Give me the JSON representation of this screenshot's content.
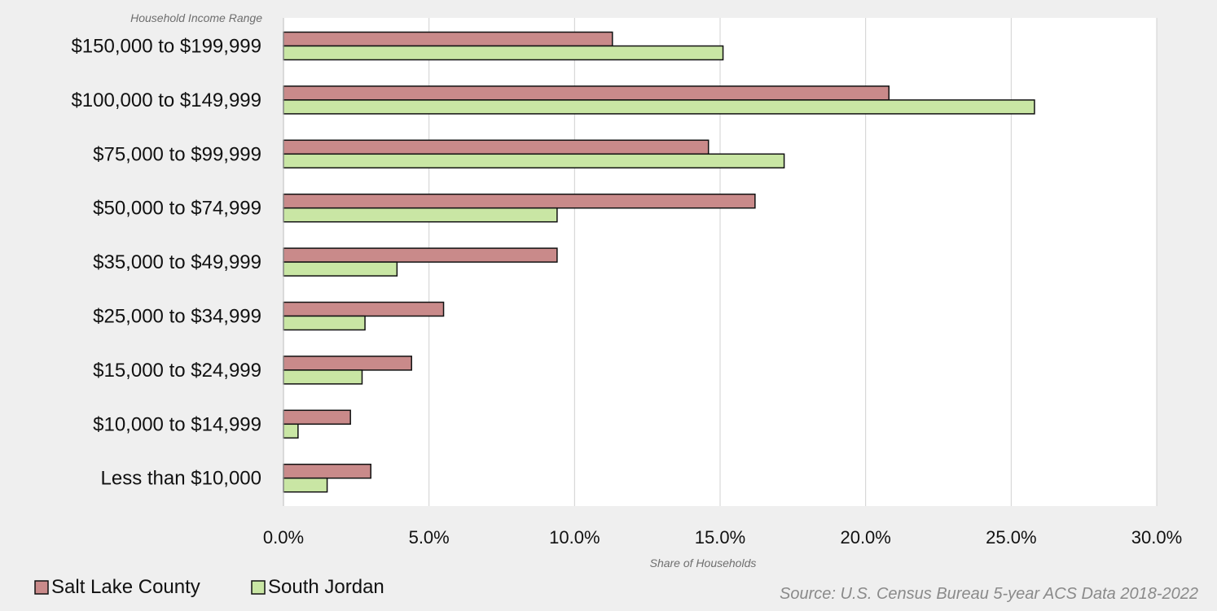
{
  "chart_data": {
    "type": "bar",
    "orientation": "horizontal",
    "categories": [
      "$150,000 to $199,999",
      "$100,000 to $149,999",
      "$75,000 to $99,999",
      "$50,000 to $74,999",
      "$35,000 to $49,999",
      "$25,000 to $34,999",
      "$15,000 to $24,999",
      "$10,000 to $14,999",
      "Less than $10,000"
    ],
    "series": [
      {
        "name": "Salt Lake County",
        "color": "#c98a8a",
        "values": [
          11.3,
          20.8,
          14.6,
          16.2,
          9.4,
          5.5,
          4.4,
          2.3,
          3.0
        ]
      },
      {
        "name": "South Jordan",
        "color": "#c9e6a4",
        "values": [
          15.1,
          25.8,
          17.2,
          9.4,
          3.9,
          2.8,
          2.7,
          0.5,
          1.5
        ]
      }
    ],
    "xlabel": "Share of Households",
    "ylabel": "Household Income Range",
    "xlim": [
      0,
      30
    ],
    "xticks": [
      "0.0%",
      "5.0%",
      "10.0%",
      "15.0%",
      "20.0%",
      "25.0%",
      "30.0%"
    ],
    "grid": true,
    "legend_position": "bottom-left",
    "source": "Source: U.S. Census Bureau 5-year ACS Data 2018-2022"
  }
}
